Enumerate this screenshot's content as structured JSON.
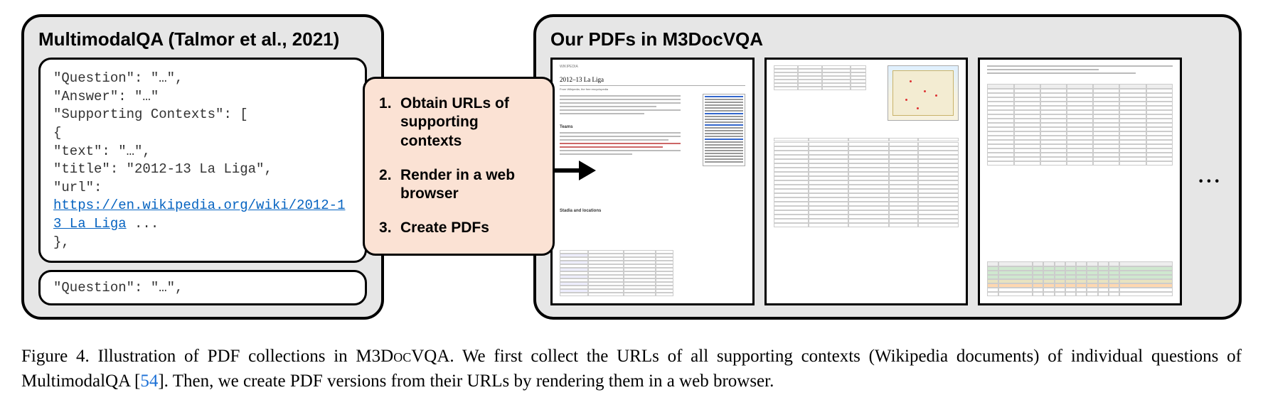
{
  "left_panel": {
    "title": "MultimodalQA (Talmor et al., 2021)",
    "context_lines": [
      "\"Question\": \"…\",",
      "\"Answer\": \"…\"",
      "\"Supporting Contexts\": [",
      "  {",
      "      \"text\": \"…\",",
      "      \"title\": \"2012-13 La Liga\",",
      "      \"url\":"
    ],
    "context_url": "https://en.wikipedia.org/wiki/2012-13_La_Liga",
    "context_url_tail": " ...",
    "context_after": [
      "  },",
      "..."
    ],
    "context_small": "\"Question\": \"…\","
  },
  "process": {
    "steps": [
      "Obtain URLs of supporting contexts",
      "Render in a web browser",
      "Create PDFs"
    ]
  },
  "right_panel": {
    "title": "Our PDFs in M3DocVQA",
    "dots": "···",
    "page1": {
      "logo": "WIKIPEDIA",
      "heading": "2012–13 La Liga",
      "subhead": "From Wikipedia, the free encyclopedia",
      "section": "Teams",
      "section2": "Stadia and locations"
    }
  },
  "caption": {
    "prefix": "Figure 4.",
    "body1": " Illustration of PDF collections in M3",
    "smallcaps1": "Doc",
    "body2": "VQA. We first collect the URLs of all supporting contexts (Wikipedia documents) of individual questions of MultimodalQA [",
    "ref": "54",
    "body3": "]. Then, we create PDF versions from their URLs by rendering them in a web browser."
  },
  "colors": {
    "panel_bg": "#e6e6e6",
    "process_bg": "#fbe2d4",
    "link": "#0563c1",
    "ref": "#1a6fd6"
  }
}
